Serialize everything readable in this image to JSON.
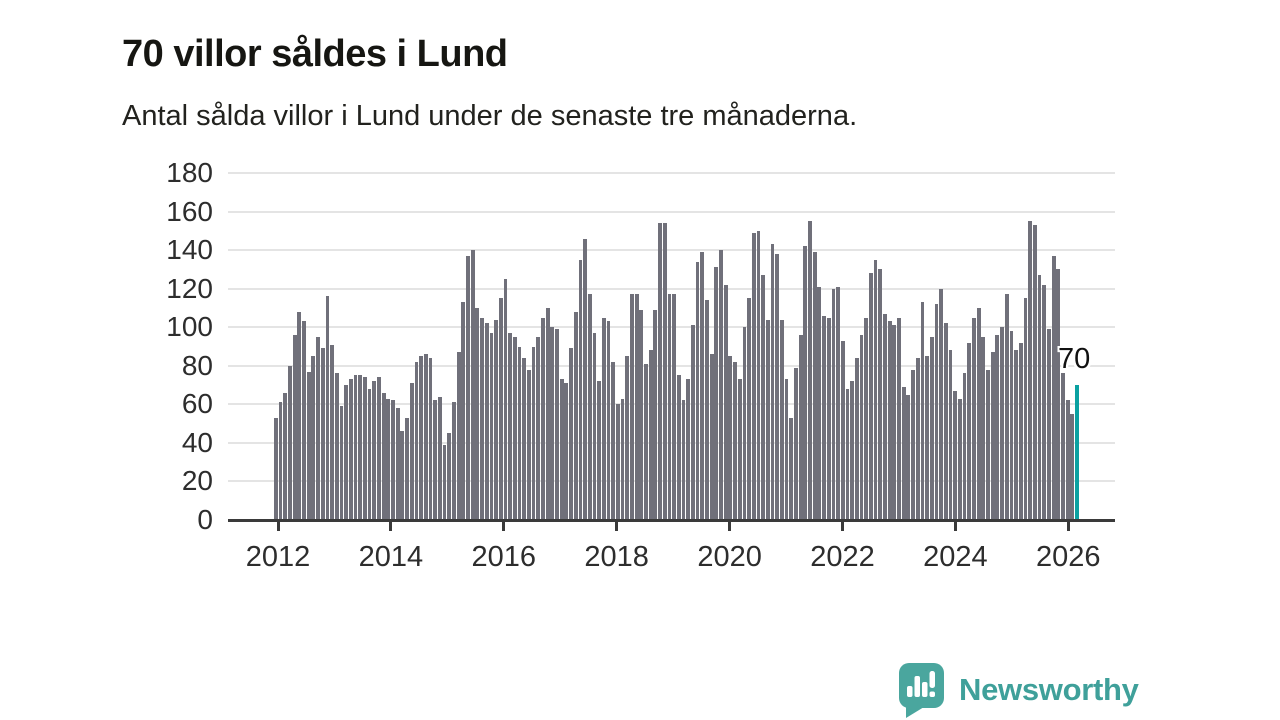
{
  "header": {
    "title": "70 villor såldes i Lund",
    "subtitle": "Antal sålda villor i Lund under de senaste tre månaderna."
  },
  "annotation": {
    "label": "70"
  },
  "branding": {
    "name": "Newsworthy",
    "icon": "speech-bubble-bar-chart-icon"
  },
  "colors": {
    "bar": "#70707a",
    "highlight": "#0aa1a1",
    "brand": "#3fa09a",
    "brand_icon": "#4aa69e",
    "grid": "#e4e4e4",
    "axis": "#3a3a3a"
  },
  "chart_data": {
    "type": "bar",
    "title": "70 villor såldes i Lund",
    "subtitle": "Antal sålda villor i Lund under de senaste tre månaderna.",
    "ylabel": "",
    "xlabel": "",
    "ylim": [
      0,
      180
    ],
    "grid": "horizontal",
    "y_ticks": [
      0,
      20,
      40,
      60,
      80,
      100,
      120,
      140,
      160,
      180
    ],
    "x_tick_labels": [
      "2012",
      "2014",
      "2016",
      "2018",
      "2020",
      "2022",
      "2024",
      "2026"
    ],
    "series_note": "monthly rolling 3-month villa sales, Dec 2011 - Feb 2026, last bar highlighted",
    "highlight_last_value": 70,
    "values": [
      53,
      61,
      66,
      80,
      96,
      108,
      103,
      77,
      85,
      95,
      89,
      116,
      91,
      76,
      59,
      70,
      73,
      75,
      75,
      74,
      68,
      72,
      74,
      66,
      63,
      62,
      58,
      46,
      53,
      71,
      82,
      85,
      86,
      84,
      62,
      64,
      39,
      45,
      61,
      87,
      113,
      137,
      140,
      110,
      105,
      102,
      97,
      104,
      115,
      125,
      97,
      95,
      90,
      84,
      78,
      90,
      95,
      105,
      110,
      100,
      99,
      73,
      71,
      89,
      108,
      135,
      146,
      117,
      97,
      72,
      105,
      103,
      82,
      60,
      63,
      85,
      117,
      117,
      109,
      81,
      88,
      109,
      154,
      154,
      117,
      117,
      75,
      62,
      73,
      101,
      134,
      139,
      114,
      86,
      131,
      140,
      122,
      85,
      82,
      73,
      100,
      115,
      149,
      150,
      127,
      104,
      143,
      138,
      104,
      73,
      53,
      79,
      96,
      142,
      155,
      139,
      121,
      106,
      105,
      120,
      121,
      93,
      68,
      72,
      84,
      96,
      105,
      128,
      135,
      130,
      107,
      103,
      101,
      105,
      69,
      65,
      78,
      84,
      113,
      85,
      95,
      112,
      120,
      102,
      88,
      67,
      63,
      76,
      92,
      105,
      110,
      95,
      78,
      87,
      96,
      100,
      117,
      98,
      88,
      92,
      115,
      155,
      153,
      127,
      122,
      99,
      137,
      130,
      76,
      62,
      55,
      70
    ]
  }
}
